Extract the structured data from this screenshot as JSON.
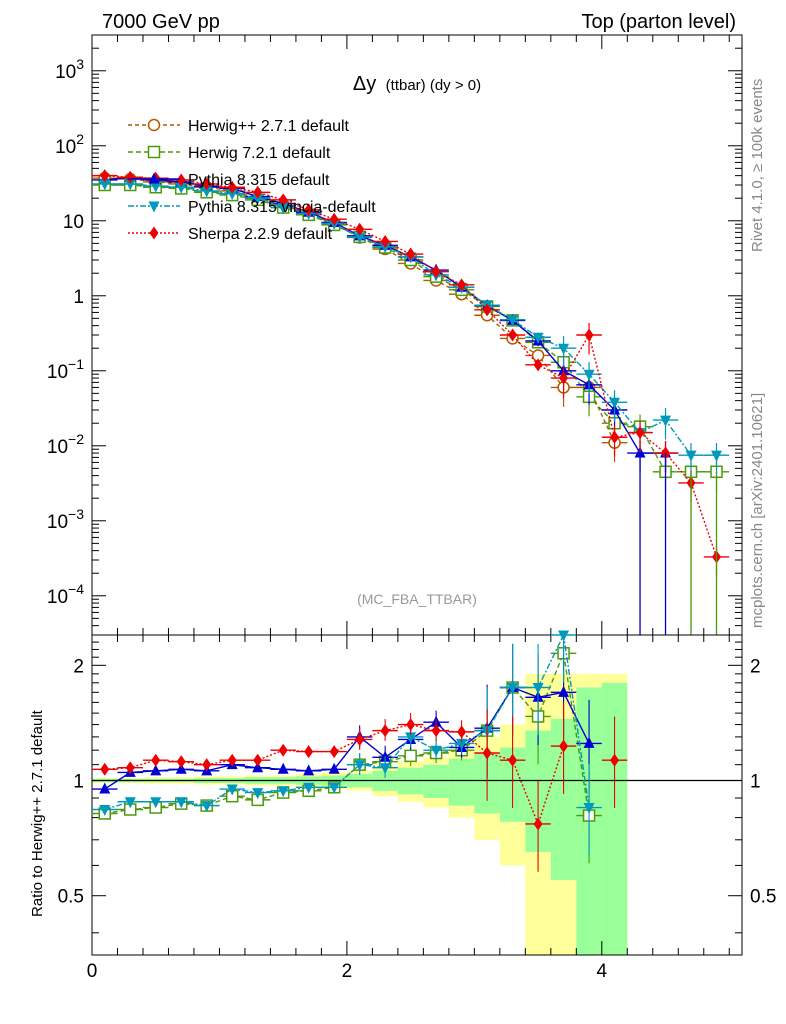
{
  "header": {
    "left": "7000 GeV pp",
    "right": "Top (parton level)"
  },
  "plot_title": {
    "main": "Δy",
    "sub": "(ttbar) (dy > 0)"
  },
  "watermark": "(MC_FBA_TTBAR)",
  "side_labels": {
    "rivet": "Rivet 4.1.0, ≥ 100k events",
    "mcplots": "mcplots.cern.ch [arXiv:2401.10621]"
  },
  "ratio_ylabel": "Ratio to Herwig++ 2.7.1 default",
  "main_axis": {
    "yticks": [
      {
        "base": "10",
        "exp": "3"
      },
      {
        "base": "10",
        "exp": "2"
      },
      {
        "base": "10",
        "exp": ""
      },
      {
        "base": "1",
        "exp": ""
      },
      {
        "base": "10",
        "exp": "−1"
      },
      {
        "base": "10",
        "exp": "−2"
      },
      {
        "base": "10",
        "exp": "−3"
      },
      {
        "base": "10",
        "exp": "−4"
      }
    ]
  },
  "ratio_axis": {
    "yticks": [
      "2",
      "1",
      "0.5"
    ]
  },
  "x_axis": {
    "ticks": [
      "0",
      "2",
      "4"
    ]
  },
  "chart_data": {
    "type": "line",
    "title": "Δy (ttbar) (dy > 0)",
    "xlabel": "",
    "ylabel": "",
    "xlim": [
      0,
      5.1
    ],
    "ylim": [
      3e-05,
      3000
    ],
    "yscale": "log",
    "x": [
      0.1,
      0.3,
      0.5,
      0.7,
      0.9,
      1.1,
      1.3,
      1.5,
      1.7,
      1.9,
      2.1,
      2.3,
      2.5,
      2.7,
      2.9,
      3.1,
      3.3,
      3.5,
      3.7,
      3.9,
      4.1,
      4.3,
      4.5,
      4.7,
      4.9
    ],
    "series": [
      {
        "name": "Herwig++ 2.7.1 default",
        "color": "#b35900",
        "marker": "circle",
        "dash": "4,3",
        "values": [
          37,
          36,
          33,
          31,
          28,
          25,
          20,
          16,
          12.5,
          9,
          6,
          4.2,
          2.7,
          1.6,
          1.05,
          0.55,
          0.27,
          0.16,
          0.06,
          0.06,
          0.011,
          null,
          null,
          null,
          null
        ]
      },
      {
        "name": "Herwig 7.2.1 default",
        "color": "#4a9a0a",
        "marker": "square",
        "dash": "5,3",
        "values": [
          30,
          30,
          28,
          27,
          24,
          22,
          19,
          15,
          12,
          8.8,
          6.1,
          4.4,
          3.0,
          1.8,
          1.2,
          0.72,
          0.47,
          0.24,
          0.13,
          0.045,
          0.02,
          0.018,
          0.0045,
          0.0045,
          0.0045
        ]
      },
      {
        "name": "Pythia 8.315 default",
        "color": "#0000d0",
        "marker": "triangle-up",
        "dash": "",
        "values": [
          35,
          38,
          35,
          33,
          29,
          27,
          21,
          17,
          13,
          9.5,
          6.3,
          4.7,
          3.3,
          2.2,
          1.3,
          0.74,
          0.47,
          0.25,
          0.1,
          0.065,
          0.03,
          0.008,
          0.008,
          null,
          null
        ]
      },
      {
        "name": "Pythia 8.315 vincia-default",
        "color": "#0099bb",
        "marker": "triangle-down",
        "dash": "6,2,2,2",
        "values": [
          31,
          31,
          29,
          28,
          25,
          23,
          20,
          15,
          12.5,
          9.2,
          6.1,
          4.5,
          3.3,
          1.9,
          1.3,
          0.75,
          0.48,
          0.28,
          0.2,
          0.09,
          0.038,
          0.015,
          0.022,
          0.0075,
          0.0075
        ]
      },
      {
        "name": "Sherpa 2.2.9 default",
        "color": "#ee0000",
        "marker": "diamond",
        "dash": "2,2",
        "values": [
          40,
          38,
          37,
          35,
          31,
          28,
          24,
          19,
          14,
          10.5,
          7.7,
          5.3,
          3.6,
          2.1,
          1.4,
          0.65,
          0.3,
          0.12,
          0.08,
          0.3,
          0.013,
          0.015,
          0.008,
          0.0032,
          0.00033
        ]
      }
    ],
    "ratio": {
      "ylabel": "Ratio to Herwig++ 2.7.1 default",
      "ylim": [
        0.35,
        2.4
      ],
      "series": [
        {
          "name": "Herwig 7.2.1 default",
          "values": [
            0.82,
            0.84,
            0.85,
            0.87,
            0.86,
            0.91,
            0.89,
            0.93,
            0.94,
            0.96,
            1.1,
            1.12,
            1.16,
            1.18,
            1.2,
            1.35,
            1.75,
            1.47,
            2.15,
            0.81,
            null,
            null,
            null,
            null,
            null
          ]
        },
        {
          "name": "Pythia 8.315 default",
          "values": [
            0.95,
            1.05,
            1.06,
            1.07,
            1.06,
            1.1,
            1.08,
            1.07,
            1.06,
            1.07,
            1.3,
            1.15,
            1.28,
            1.42,
            1.22,
            1.37,
            1.75,
            1.65,
            1.7,
            1.25,
            null,
            null,
            null,
            null,
            null
          ]
        },
        {
          "name": "Pythia 8.315 vincia-default",
          "values": [
            0.84,
            0.88,
            0.88,
            0.88,
            0.86,
            0.95,
            0.93,
            0.94,
            0.96,
            0.96,
            1.1,
            1.08,
            1.3,
            1.2,
            1.25,
            1.35,
            1.75,
            1.75,
            2.4,
            0.85,
            null,
            null,
            null,
            null,
            null
          ]
        },
        {
          "name": "Sherpa 2.2.9 default",
          "values": [
            1.07,
            1.08,
            1.13,
            1.12,
            1.1,
            1.13,
            1.13,
            1.2,
            1.19,
            1.19,
            1.28,
            1.35,
            1.4,
            1.35,
            1.34,
            1.18,
            1.13,
            0.77,
            1.23,
            null,
            1.13,
            null,
            null,
            null,
            null
          ]
        }
      ],
      "band_inner": [
        0.01,
        0.01,
        0.01,
        0.01,
        0.015,
        0.015,
        0.02,
        0.02,
        0.025,
        0.03,
        0.04,
        0.06,
        0.08,
        0.1,
        0.14,
        0.18,
        0.22,
        0.35,
        0.45,
        0.75,
        0.8
      ],
      "band_outer": [
        0.015,
        0.015,
        0.02,
        0.02,
        0.025,
        0.025,
        0.03,
        0.03,
        0.04,
        0.05,
        0.06,
        0.09,
        0.12,
        0.15,
        0.2,
        0.3,
        0.4,
        0.9,
        0.9,
        0.9,
        0.9
      ]
    }
  }
}
